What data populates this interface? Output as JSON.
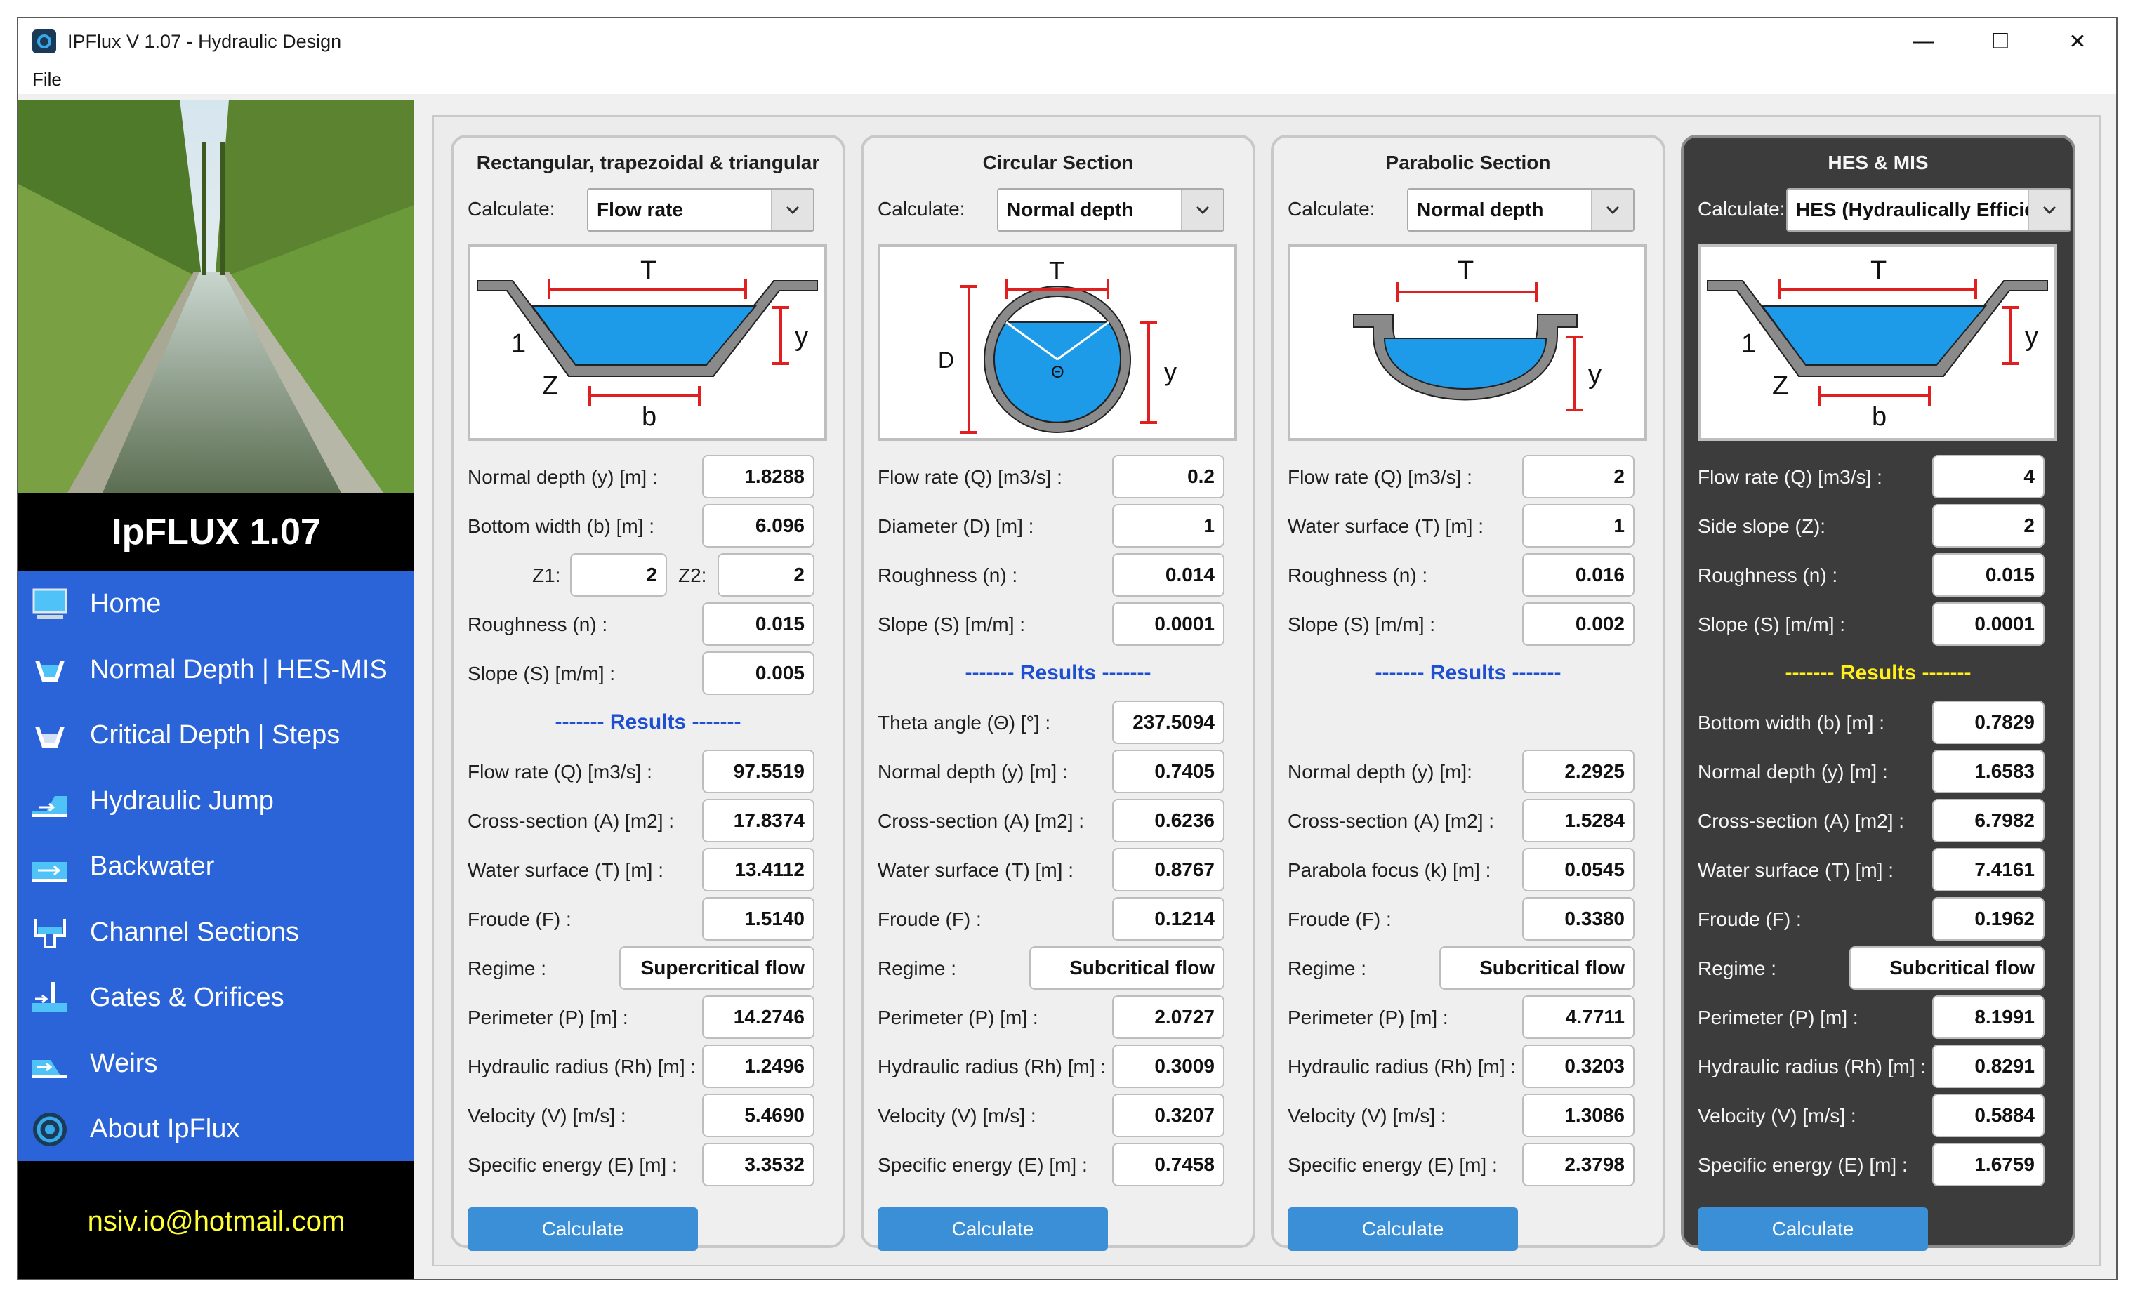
{
  "window": {
    "title": "IPFlux V 1.07 - Hydraulic Design",
    "controls": {
      "minimize": "—",
      "maximize": "☐",
      "close": "✕"
    }
  },
  "menu": {
    "file": "File"
  },
  "sidebar": {
    "brand": "IpFLUX 1.07",
    "email": "nsiv.io@hotmail.com",
    "items": [
      {
        "label": "Home",
        "icon": "monitor-icon"
      },
      {
        "label": "Normal Depth | HES-MIS",
        "icon": "channel-section-icon"
      },
      {
        "label": "Critical Depth | Steps",
        "icon": "channel-section-icon"
      },
      {
        "label": "Hydraulic Jump",
        "icon": "hydraulic-jump-icon"
      },
      {
        "label": "Backwater",
        "icon": "backwater-icon"
      },
      {
        "label": "Channel Sections",
        "icon": "channel-sections-icon"
      },
      {
        "label": "Gates & Orifices",
        "icon": "gate-icon"
      },
      {
        "label": "Weirs",
        "icon": "weir-icon"
      },
      {
        "label": "About IpFlux",
        "icon": "about-logo-icon"
      }
    ]
  },
  "calculate_label": "Calculate:",
  "calculate_button": "Calculate",
  "results_label": "------- Results -------",
  "panels": {
    "rect": {
      "title": "Rectangular, trapezoidal & triangular",
      "select": "Flow rate",
      "diagram": {
        "T": "T",
        "y": "y",
        "one": "1",
        "Z": "Z",
        "b": "b"
      },
      "inputs": {
        "normal_depth": {
          "label": "Normal depth (y) [m] :",
          "value": "1.8288"
        },
        "bottom_width": {
          "label": "Bottom width (b) [m] :",
          "value": "6.096"
        },
        "z1": {
          "label": "Z1:",
          "value": "2"
        },
        "z2": {
          "label": "Z2:",
          "value": "2"
        },
        "roughness": {
          "label": "Roughness (n) :",
          "value": "0.015"
        },
        "slope": {
          "label": "Slope (S) [m/m] :",
          "value": "0.005"
        }
      },
      "results": {
        "flow_rate": {
          "label": "Flow rate (Q) [m3/s] :",
          "value": "97.5519"
        },
        "cross_section": {
          "label": "Cross-section (A) [m2] :",
          "value": "17.8374"
        },
        "water_surface": {
          "label": "Water surface (T) [m] :",
          "value": "13.4112"
        },
        "froude": {
          "label": "Froude (F) :",
          "value": "1.5140"
        },
        "regime": {
          "label": "Regime :",
          "value": "Supercritical flow"
        },
        "perimeter": {
          "label": "Perimeter (P) [m] :",
          "value": "14.2746"
        },
        "hydraulic_radius": {
          "label": "Hydraulic radius (Rh) [m] :",
          "value": "1.2496"
        },
        "velocity": {
          "label": "Velocity (V) [m/s] :",
          "value": "5.4690"
        },
        "specific_energy": {
          "label": "Specific energy (E) [m] :",
          "value": "3.3532"
        }
      }
    },
    "circ": {
      "title": "Circular Section",
      "select": "Normal depth",
      "diagram": {
        "T": "T",
        "D": "D",
        "theta": "Θ",
        "y": "y"
      },
      "inputs": {
        "flow_rate": {
          "label": "Flow rate (Q) [m3/s] :",
          "value": "0.2"
        },
        "diameter": {
          "label": "Diameter (D) [m] :",
          "value": "1"
        },
        "roughness": {
          "label": "Roughness (n) :",
          "value": "0.014"
        },
        "slope": {
          "label": "Slope (S) [m/m] :",
          "value": "0.0001"
        }
      },
      "results": {
        "theta": {
          "label": "Theta angle (Θ) [°] :",
          "value": "237.5094"
        },
        "normal_depth": {
          "label": "Normal depth (y) [m] :",
          "value": "0.7405"
        },
        "cross_section": {
          "label": "Cross-section (A) [m2] :",
          "value": "0.6236"
        },
        "water_surface": {
          "label": "Water surface (T) [m] :",
          "value": "0.8767"
        },
        "froude": {
          "label": "Froude (F) :",
          "value": "0.1214"
        },
        "regime": {
          "label": "Regime :",
          "value": "Subcritical flow"
        },
        "perimeter": {
          "label": "Perimeter (P) [m] :",
          "value": "2.0727"
        },
        "hydraulic_radius": {
          "label": "Hydraulic radius (Rh) [m] :",
          "value": "0.3009"
        },
        "velocity": {
          "label": "Velocity (V) [m/s] :",
          "value": "0.3207"
        },
        "specific_energy": {
          "label": "Specific energy (E) [m] :",
          "value": "0.7458"
        }
      }
    },
    "para": {
      "title": "Parabolic Section",
      "select": "Normal depth",
      "diagram": {
        "T": "T",
        "y": "y"
      },
      "inputs": {
        "flow_rate": {
          "label": "Flow rate (Q) [m3/s] :",
          "value": "2"
        },
        "water_surface": {
          "label": "Water surface (T) [m] :",
          "value": "1"
        },
        "roughness": {
          "label": "Roughness (n) :",
          "value": "0.016"
        },
        "slope": {
          "label": "Slope (S) [m/m] :",
          "value": "0.002"
        }
      },
      "results": {
        "normal_depth": {
          "label": "Normal depth (y) [m]:",
          "value": "2.2925"
        },
        "cross_section": {
          "label": "Cross-section (A) [m2] :",
          "value": "1.5284"
        },
        "focus": {
          "label": "Parabola focus (k) [m] :",
          "value": "0.0545"
        },
        "froude": {
          "label": "Froude (F) :",
          "value": "0.3380"
        },
        "regime": {
          "label": "Regime :",
          "value": "Subcritical flow"
        },
        "perimeter": {
          "label": "Perimeter (P) [m] :",
          "value": "4.7711"
        },
        "hydraulic_radius": {
          "label": "Hydraulic radius (Rh) [m] :",
          "value": "0.3203"
        },
        "velocity": {
          "label": "Velocity (V) [m/s] :",
          "value": "1.3086"
        },
        "specific_energy": {
          "label": "Specific energy (E) [m] :",
          "value": "2.3798"
        }
      }
    },
    "hes": {
      "title": "HES & MIS",
      "select": "HES (Hydraulically Efficie",
      "diagram": {
        "T": "T",
        "y": "y",
        "one": "1",
        "Z": "Z",
        "b": "b"
      },
      "inputs": {
        "flow_rate": {
          "label": "Flow rate (Q) [m3/s] :",
          "value": "4"
        },
        "side_slope": {
          "label": "Side slope (Z):",
          "value": "2"
        },
        "roughness": {
          "label": "Roughness (n) :",
          "value": "0.015"
        },
        "slope": {
          "label": "Slope (S) [m/m] :",
          "value": "0.0001"
        }
      },
      "results": {
        "bottom_width": {
          "label": "Bottom width (b) [m] :",
          "value": "0.7829"
        },
        "normal_depth": {
          "label": "Normal depth (y) [m] :",
          "value": "1.6583"
        },
        "cross_section": {
          "label": "Cross-section (A) [m2] :",
          "value": "6.7982"
        },
        "water_surface": {
          "label": "Water surface (T) [m] :",
          "value": "7.4161"
        },
        "froude": {
          "label": "Froude (F) :",
          "value": "0.1962"
        },
        "regime": {
          "label": "Regime :",
          "value": "Subcritical flow"
        },
        "perimeter": {
          "label": "Perimeter (P) [m] :",
          "value": "8.1991"
        },
        "hydraulic_radius": {
          "label": "Hydraulic radius (Rh) [m] :",
          "value": "0.8291"
        },
        "velocity": {
          "label": "Velocity (V) [m/s] :",
          "value": "0.5884"
        },
        "specific_energy": {
          "label": "Specific energy (E) [m] :",
          "value": "1.6759"
        }
      }
    }
  },
  "colors": {
    "nav_bg": "#2b64d8",
    "button": "#3a8fd6",
    "results_blue": "#1f4fd1",
    "results_yellow": "#ffef1a",
    "email": "#ffff33",
    "water": "#1e9be8",
    "dimension": "#e02020"
  }
}
